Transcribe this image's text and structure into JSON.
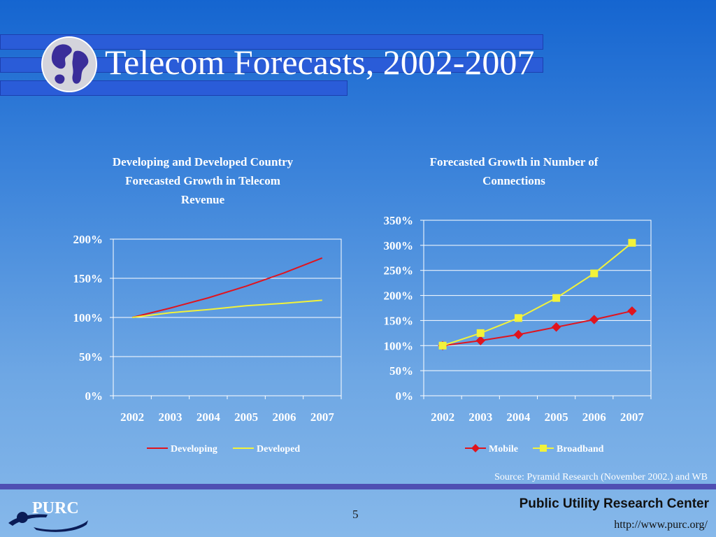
{
  "title": "Telecom Forecasts, 2002-2007",
  "chart_data": [
    {
      "type": "line",
      "title_lines": [
        "Developing and Developed Country",
        "Forecasted Growth in Telecom",
        "Revenue"
      ],
      "categories": [
        "2002",
        "2003",
        "2004",
        "2005",
        "2006",
        "2007"
      ],
      "series": [
        {
          "name": "Developing",
          "values": [
            100,
            112,
            125,
            140,
            157,
            176
          ],
          "color": "#e0141e"
        },
        {
          "name": "Developed",
          "values": [
            100,
            106,
            110,
            115,
            118,
            122
          ],
          "color": "#f2f23a"
        }
      ],
      "ylim": [
        0,
        200
      ],
      "yticks": [
        0,
        50,
        100,
        150,
        200
      ],
      "ytick_labels": [
        "0%",
        "50%",
        "100%",
        "150%",
        "200%"
      ],
      "grid": true,
      "legend_position": "bottom",
      "markers": false
    },
    {
      "type": "line",
      "title_lines": [
        "Forecasted Growth in Number of",
        "Connections"
      ],
      "categories": [
        "2002",
        "2003",
        "2004",
        "2005",
        "2006",
        "2007"
      ],
      "series": [
        {
          "name": "Mobile",
          "values": [
            100,
            110,
            122,
            137,
            152,
            169
          ],
          "color": "#e0141e",
          "marker": "diamond"
        },
        {
          "name": "Broadband",
          "values": [
            100,
            125,
            155,
            195,
            244,
            305
          ],
          "color": "#f2f23a",
          "marker": "square"
        }
      ],
      "ylim": [
        0,
        350
      ],
      "yticks": [
        0,
        50,
        100,
        150,
        200,
        250,
        300,
        350
      ],
      "ytick_labels": [
        "0%",
        "50%",
        "100%",
        "150%",
        "200%",
        "250%",
        "300%",
        "350%"
      ],
      "grid": true,
      "legend_position": "bottom",
      "markers": true
    }
  ],
  "source": "Source: Pyramid Research (November 2002.) and WB",
  "footer": {
    "logo_text": "PURC",
    "page_number": "5",
    "org_name": "Public Utility Research Center",
    "org_url": "http://www.purc.org/"
  },
  "colors": {
    "title_bars": "#2a5cd8",
    "footer_band": "#4f4fb3"
  }
}
